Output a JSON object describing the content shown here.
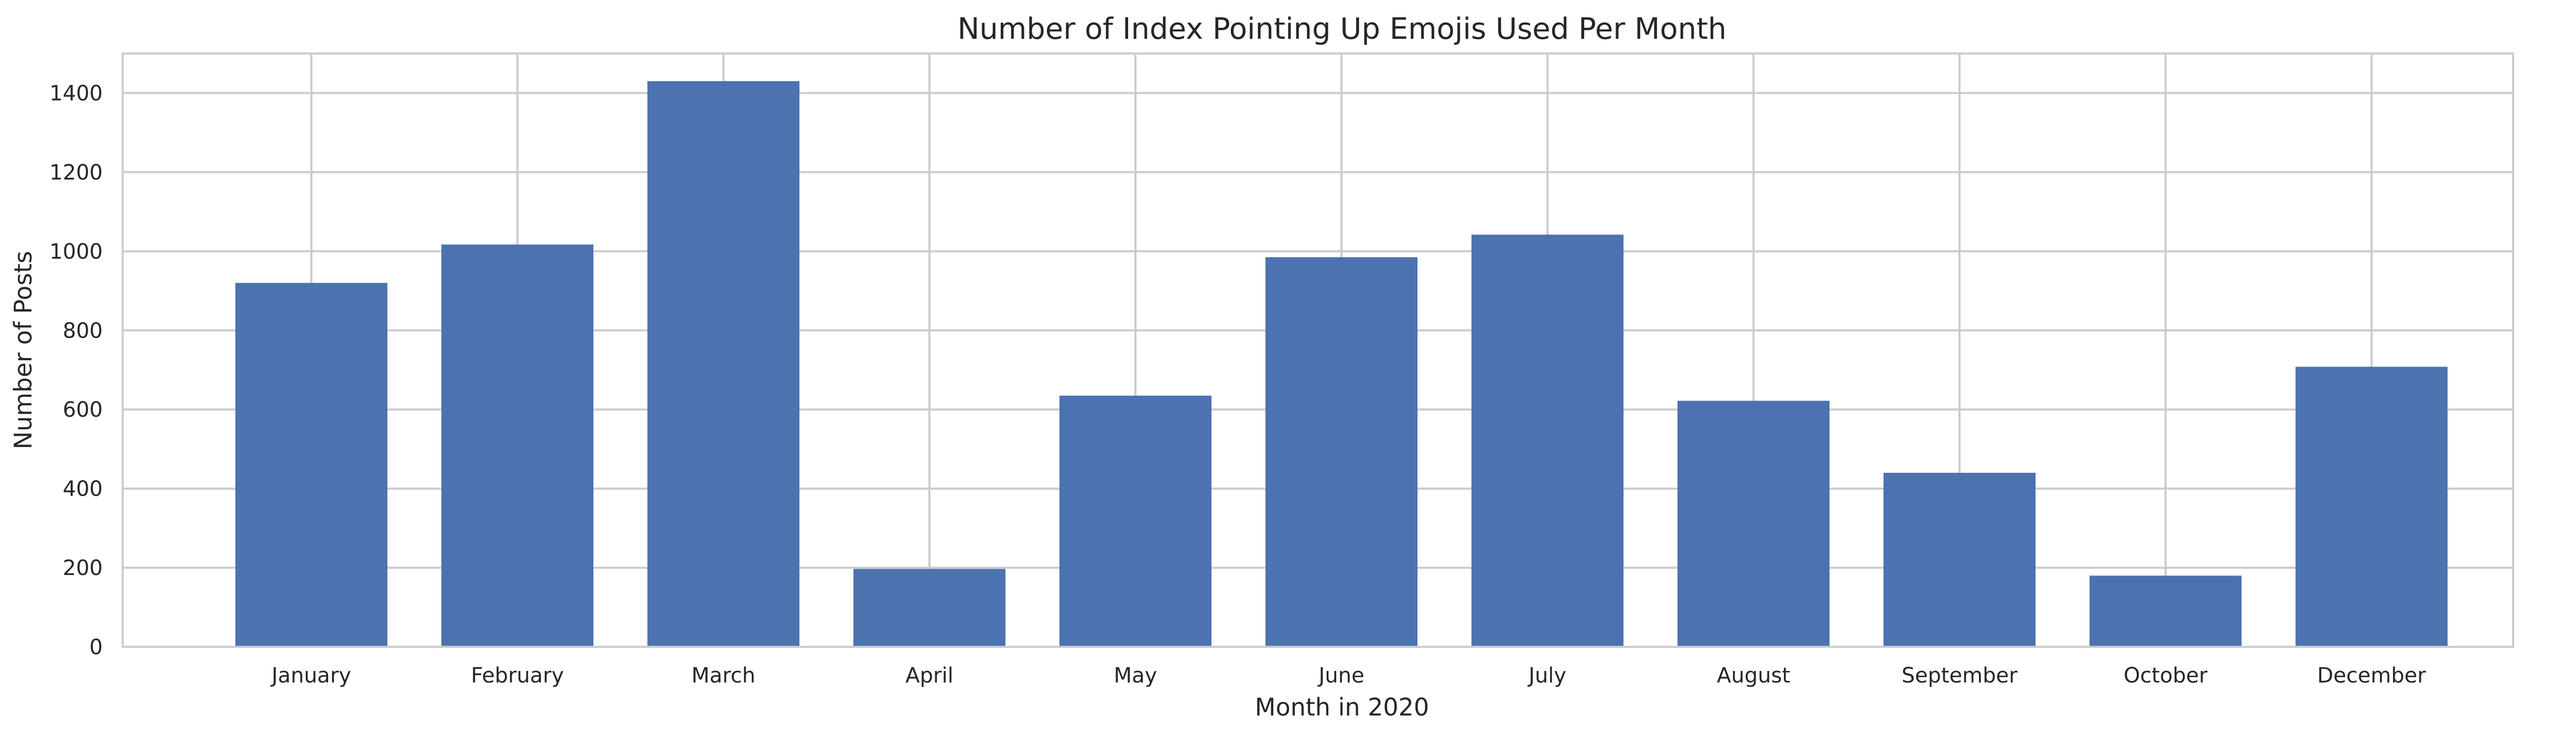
{
  "chart_data": {
    "type": "bar",
    "title": "Number of Index Pointing Up Emojis Used Per Month",
    "xlabel": "Month in 2020",
    "ylabel": "Number of Posts",
    "categories": [
      "January",
      "February",
      "March",
      "April",
      "May",
      "June",
      "July",
      "August",
      "September",
      "October",
      "December"
    ],
    "values": [
      920,
      1017,
      1430,
      197,
      635,
      985,
      1042,
      622,
      440,
      180,
      708
    ],
    "ylim": [
      0,
      1500
    ],
    "yticks": [
      0,
      200,
      400,
      600,
      800,
      1000,
      1200,
      1400
    ],
    "bar_color": "#4c72b0",
    "grid": true
  }
}
